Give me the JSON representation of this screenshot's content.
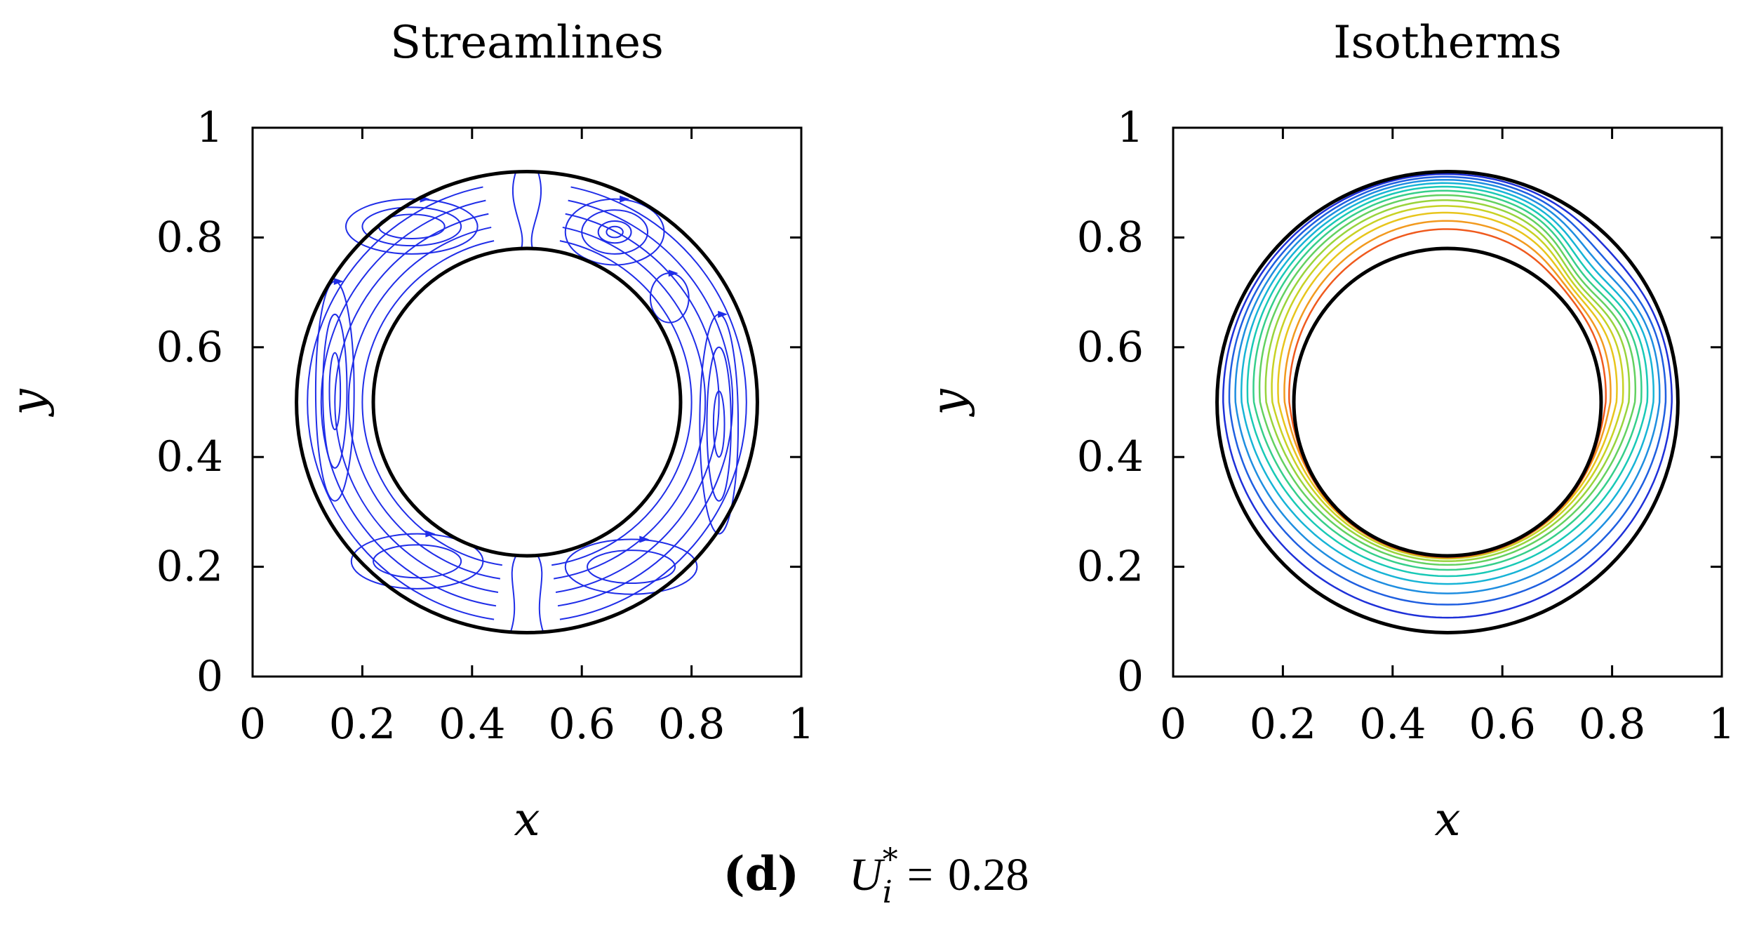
{
  "charts": [
    {
      "id": "streamlines",
      "type": "contour",
      "title": "Streamlines",
      "xlabel": "x",
      "ylabel": "y",
      "xlim": [
        0,
        1
      ],
      "ylim": [
        0,
        1
      ],
      "xticks": [
        "0",
        "0.2",
        "0.4",
        "0.6",
        "0.8",
        "1"
      ],
      "yticks": [
        "0",
        "0.2",
        "0.4",
        "0.6",
        "0.8",
        "1"
      ],
      "tick_values": [
        0,
        0.2,
        0.4,
        0.6,
        0.8,
        1
      ],
      "annulus": {
        "center": [
          0.5,
          0.5
        ],
        "outer_radius": 0.42,
        "inner_radius": 0.28
      },
      "line_color": "#1f2de8",
      "boundary_color": "#000000",
      "streamline_groups": [
        {
          "name": "top-left-vortex",
          "center": [
            0.29,
            0.82
          ],
          "half_widths": [
            [
              0.12,
              0.05
            ],
            [
              0.09,
              0.035
            ],
            [
              0.06,
              0.022
            ]
          ]
        },
        {
          "name": "top-right-vortex",
          "center": [
            0.66,
            0.81
          ],
          "half_widths": [
            [
              0.09,
              0.06
            ],
            [
              0.06,
              0.04
            ],
            [
              0.03,
              0.02
            ],
            [
              0.015,
              0.01
            ]
          ]
        },
        {
          "name": "right-small-cell",
          "center": [
            0.76,
            0.69
          ],
          "half_widths": [
            [
              0.035,
              0.045
            ]
          ]
        },
        {
          "name": "left-vortex",
          "center": [
            0.15,
            0.52
          ],
          "half_widths": [
            [
              0.035,
              0.2
            ],
            [
              0.022,
              0.14
            ],
            [
              0.01,
              0.07
            ]
          ]
        },
        {
          "name": "right-vortex",
          "center": [
            0.85,
            0.46
          ],
          "half_widths": [
            [
              0.035,
              0.2
            ],
            [
              0.022,
              0.14
            ],
            [
              0.01,
              0.06
            ]
          ]
        },
        {
          "name": "bottom-left-vortex",
          "center": [
            0.3,
            0.21
          ],
          "half_widths": [
            [
              0.12,
              0.05
            ],
            [
              0.08,
              0.03
            ]
          ]
        },
        {
          "name": "bottom-right-vortex",
          "center": [
            0.69,
            0.2
          ],
          "half_widths": [
            [
              0.12,
              0.05
            ],
            [
              0.08,
              0.03
            ]
          ]
        }
      ]
    },
    {
      "id": "isotherms",
      "type": "contour",
      "title": "Isotherms",
      "xlabel": "x",
      "ylabel": "y",
      "xlim": [
        0,
        1
      ],
      "ylim": [
        0,
        1
      ],
      "xticks": [
        "0",
        "0.2",
        "0.4",
        "0.6",
        "0.8",
        "1"
      ],
      "yticks": [
        "0",
        "0.2",
        "0.4",
        "0.6",
        "0.8",
        "1"
      ],
      "tick_values": [
        0,
        0.2,
        0.4,
        0.6,
        0.8,
        1
      ],
      "annulus": {
        "center": [
          0.5,
          0.5
        ],
        "outer_radius": 0.42,
        "inner_radius": 0.28
      },
      "boundary_color": "#000000",
      "levels": [
        0.08,
        0.16,
        0.24,
        0.32,
        0.4,
        0.48,
        0.56,
        0.64,
        0.72,
        0.8,
        0.88,
        0.94
      ],
      "level_colors": [
        "#1e30d8",
        "#1f5fe0",
        "#1f8ee0",
        "#17b4d6",
        "#19c9b6",
        "#36cf8a",
        "#63d160",
        "#98d43c",
        "#c8d224",
        "#e8c51c",
        "#f29a1f",
        "#ef5a1e"
      ]
    }
  ],
  "caption": {
    "panel_tag": "(d)",
    "variable": "U",
    "superscript": "*",
    "subscript": "i",
    "equals": "=",
    "value": "0.28"
  }
}
